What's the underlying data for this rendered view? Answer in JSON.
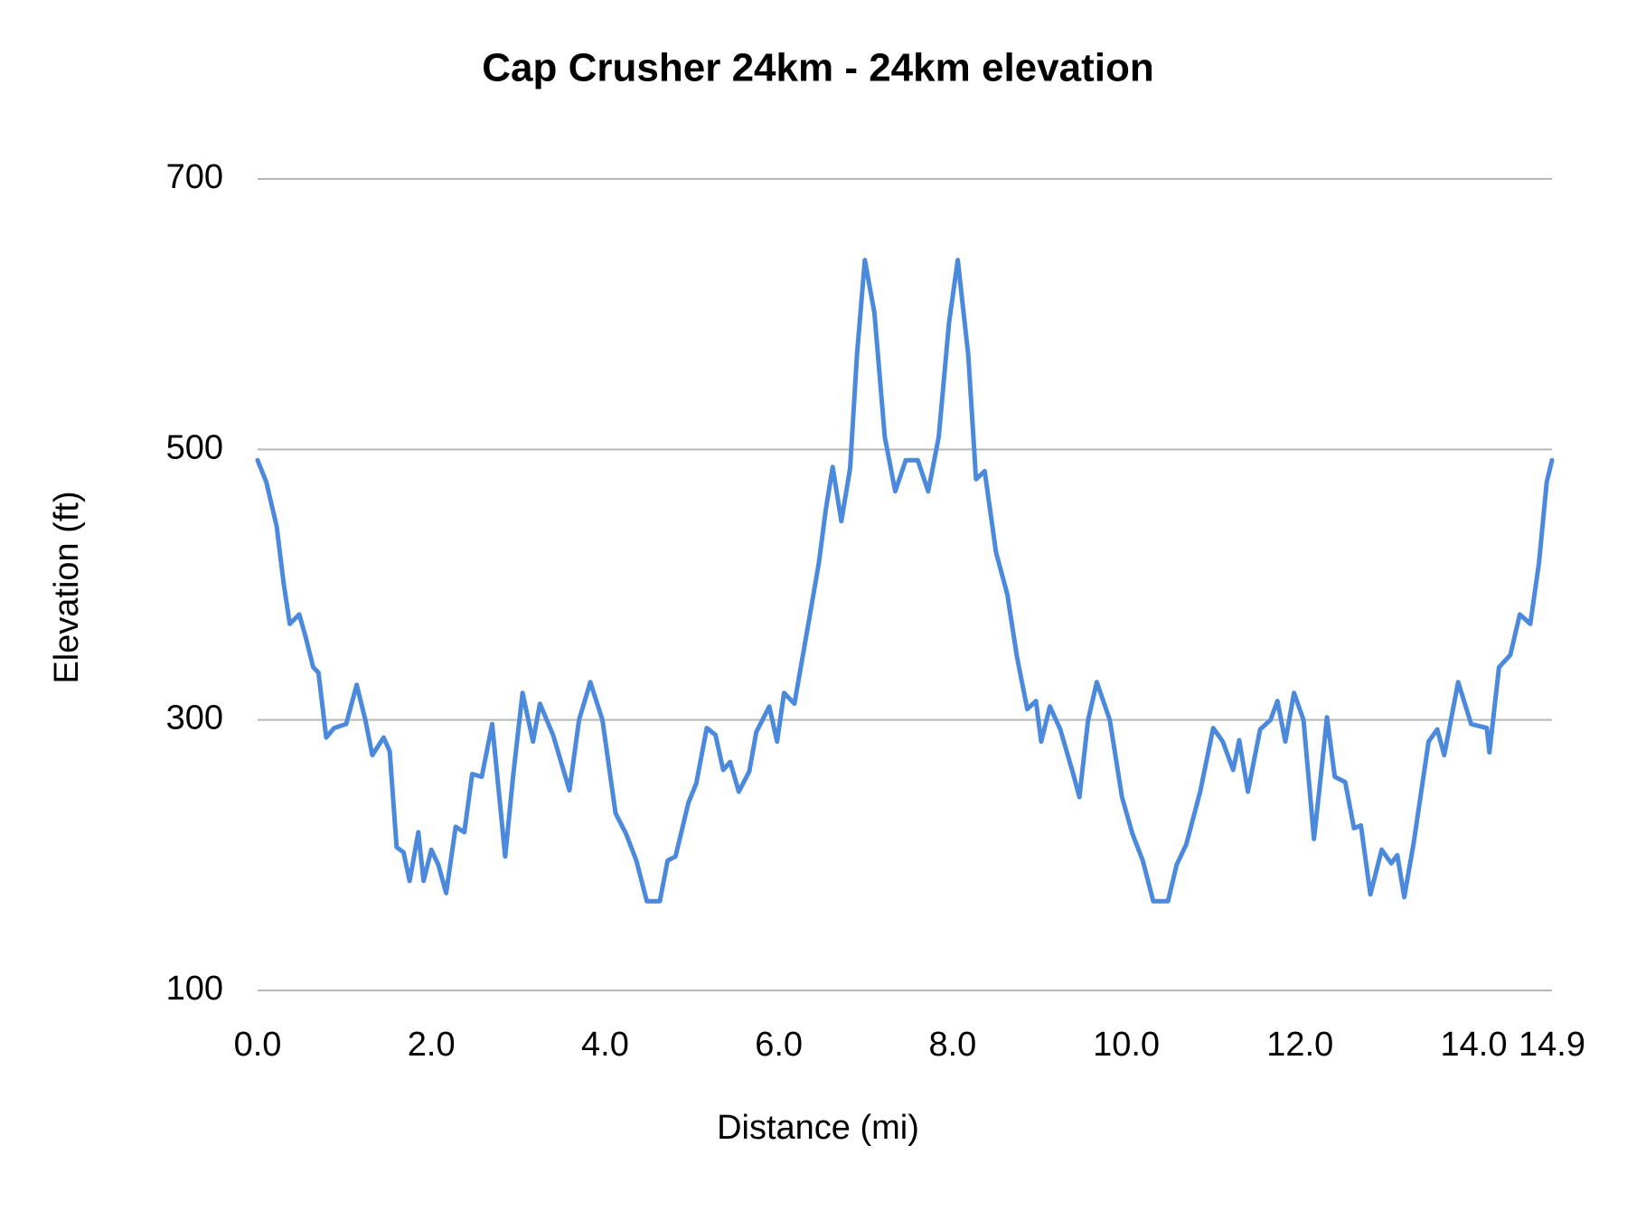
{
  "chart_data": {
    "type": "line",
    "title": "Cap Crusher 24km - 24km elevation",
    "x_label": "Distance (mi)",
    "y_label": "Elevation (ft)",
    "color": "#4a89dc",
    "grid": true,
    "xlim": [
      0,
      14.9
    ],
    "ylim": [
      100,
      700
    ],
    "xticks": [
      {
        "value": 0,
        "label": "0.0"
      },
      {
        "value": 2,
        "label": "2.0"
      },
      {
        "value": 4,
        "label": "4.0"
      },
      {
        "value": 6,
        "label": "6.0"
      },
      {
        "value": 8,
        "label": "8.0"
      },
      {
        "value": 10,
        "label": "10.0"
      },
      {
        "value": 12,
        "label": "12.0"
      },
      {
        "value": 14,
        "label": "14.0"
      },
      {
        "value": 14.9,
        "label": "14.9"
      }
    ],
    "yticks": [
      100,
      300,
      500,
      700
    ],
    "x": [
      0,
      0.1,
      0.22,
      0.3,
      0.37,
      0.48,
      0.55,
      0.64,
      0.7,
      0.79,
      0.88,
      1.02,
      1.14,
      1.24,
      1.32,
      1.45,
      1.52,
      1.6,
      1.68,
      1.75,
      1.85,
      1.91,
      2.0,
      2.08,
      2.17,
      2.28,
      2.38,
      2.47,
      2.58,
      2.7,
      2.85,
      2.94,
      3.05,
      3.17,
      3.25,
      3.4,
      3.59,
      3.7,
      3.83,
      3.97,
      4.12,
      4.24,
      4.36,
      4.48,
      4.63,
      4.72,
      4.81,
      4.96,
      5.05,
      5.17,
      5.27,
      5.36,
      5.44,
      5.54,
      5.66,
      5.74,
      5.89,
      5.98,
      6.06,
      6.18,
      6.34,
      6.46,
      6.54,
      6.62,
      6.72,
      6.82,
      6.9,
      6.99,
      7.1,
      7.22,
      7.34,
      7.46,
      7.6,
      7.72,
      7.84,
      7.96,
      8.06,
      8.18,
      8.27,
      8.37,
      8.5,
      8.63,
      8.74,
      8.86,
      8.96,
      9.02,
      9.12,
      9.24,
      9.38,
      9.46,
      9.56,
      9.66,
      9.81,
      9.95,
      10.07,
      10.19,
      10.31,
      10.48,
      10.58,
      10.69,
      10.85,
      11.0,
      11.11,
      11.23,
      11.3,
      11.4,
      11.54,
      11.66,
      11.74,
      11.83,
      11.93,
      12.04,
      12.16,
      12.22,
      12.31,
      12.4,
      12.52,
      12.62,
      12.7,
      12.81,
      12.94,
      13.05,
      13.12,
      13.2,
      13.31,
      13.48,
      13.58,
      13.66,
      13.82,
      13.97,
      14.15,
      14.18,
      14.29,
      14.42,
      14.53,
      14.65,
      14.75,
      14.84,
      14.9
    ],
    "values": [
      492,
      476,
      443,
      401,
      371,
      378,
      362,
      339,
      335,
      287,
      294,
      297,
      326,
      300,
      274,
      287,
      277,
      206,
      202,
      181,
      217,
      181,
      204,
      193,
      172,
      221,
      217,
      260,
      258,
      297,
      199,
      258,
      320,
      284,
      312,
      289,
      248,
      300,
      328,
      300,
      231,
      216,
      196,
      166,
      166,
      196,
      199,
      239,
      253,
      294,
      289,
      263,
      269,
      247,
      262,
      291,
      310,
      284,
      320,
      312,
      371,
      416,
      455,
      487,
      447,
      486,
      570,
      640,
      601,
      509,
      469,
      492,
      492,
      469,
      509,
      594,
      640,
      570,
      478,
      484,
      424,
      393,
      347,
      308,
      314,
      284,
      310,
      293,
      262,
      243,
      300,
      328,
      300,
      243,
      216,
      196,
      166,
      166,
      193,
      208,
      247,
      294,
      284,
      263,
      285,
      247,
      293,
      300,
      314,
      284,
      320,
      300,
      212,
      247,
      302,
      258,
      254,
      220,
      222,
      171,
      204,
      194,
      200,
      169,
      210,
      284,
      293,
      274,
      328,
      297,
      294,
      276,
      339,
      348,
      378,
      371,
      416,
      476,
      492
    ]
  }
}
